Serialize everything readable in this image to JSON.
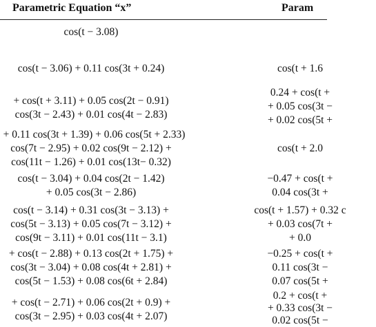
{
  "table": {
    "headers": {
      "x": "Parametric Equation “x”",
      "y": "Param"
    },
    "rows": [
      {
        "x": [
          "cos(t − 3.08)"
        ],
        "y": []
      },
      {
        "x": [
          "cos(t − 3.06) + 0.11 cos(3t + 0.24)"
        ],
        "y": [
          "cos(t + 1.6"
        ]
      },
      {
        "x": [
          "+ cos(t + 3.11) + 0.05 cos(2t − 0.91)",
          "cos(3t − 2.43) + 0.01 cos(4t − 2.83)"
        ],
        "y": [
          "0.24 + cos(t +",
          "+ 0.05 cos(3t −",
          "+ 0.02 cos(5t +"
        ]
      },
      {
        "x": [
          ") + 0.11 cos(3t + 1.39) + 0.06 cos(5t + 2.33)",
          "cos(7t − 2.95) + 0.02 cos(9t − 2.12) +",
          "cos(11t − 1.26) + 0.01 cos(13t− 0.32)"
        ],
        "y": [
          "cos(t + 2.0"
        ]
      },
      {
        "x": [
          "cos(t − 3.04) + 0.04 cos(2t − 1.42)",
          "+ 0.05 cos(3t − 2.86)"
        ],
        "y": [
          "−0.47 + cos(t +",
          "0.04 cos(3t +"
        ]
      },
      {
        "x": [
          "cos(t − 3.14) + 0.31 cos(3t − 3.13) +",
          "cos(5t − 3.13) + 0.05 cos(7t − 3.12) +",
          "cos(9t − 3.11) + 0.01 cos(11t − 3.1)"
        ],
        "y": [
          "cos(t + 1.57) + 0.32 c",
          "+ 0.03 cos(7t +",
          "+ 0.0"
        ]
      },
      {
        "x": [
          "+ cos(t − 2.88) + 0.13 cos(2t + 1.75) +",
          "cos(3t − 3.04) + 0.08 cos(4t + 2.81) +",
          "cos(5t − 1.53) + 0.08 cos(6t + 2.84)"
        ],
        "y": [
          "−0.25 + cos(t +",
          "0.11 cos(3t −",
          "0.07 cos(5t +"
        ]
      },
      {
        "x": [
          "+ cos(t − 2.71) + 0.06 cos(2t + 0.9) +",
          "cos(3t − 2.95) + 0.03 cos(4t + 2.07)"
        ],
        "y": [
          "0.2 + cos(t +",
          "+ 0.33 cos(3t −",
          "0.02 cos(5t −"
        ]
      }
    ]
  }
}
